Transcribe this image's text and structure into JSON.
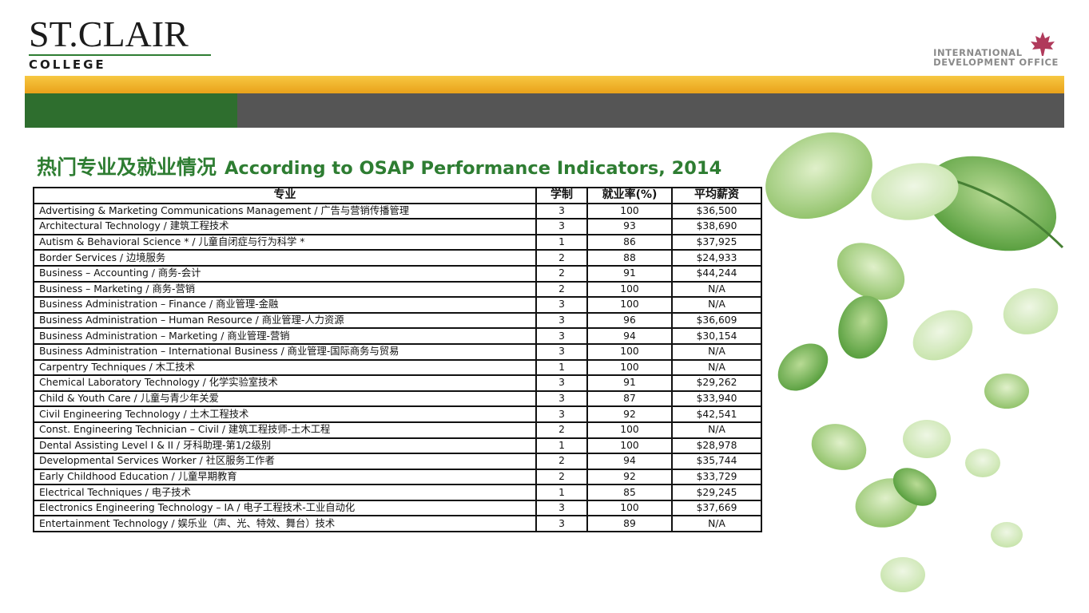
{
  "header": {
    "logo_main": "ST.CLAIR",
    "logo_sub": "COLLEGE",
    "office_line1": "INTERNATIONAL",
    "office_line2": "DEVELOPMENT OFFICE",
    "colors": {
      "yellow": "#f2b32a",
      "green": "#2e6e2e",
      "gray": "#555555",
      "title": "#2e7d32"
    }
  },
  "title": {
    "cn": "热门专业及就业情况",
    "en": "According to OSAP Performance Indicators, 2014"
  },
  "table": {
    "columns": [
      "专业",
      "学制",
      "就业率(%)",
      "平均薪资"
    ],
    "rows": [
      {
        "program": "Advertising & Marketing Communications Management / 广告与营销传播管理",
        "years": "3",
        "rate": "100",
        "salary": "$36,500"
      },
      {
        "program": "Architectural Technology / 建筑工程技术",
        "years": "3",
        "rate": "93",
        "salary": "$38,690"
      },
      {
        "program": "Autism & Behavioral Science * / 儿童自闭症与行为科学 *",
        "years": "1",
        "rate": "86",
        "salary": "$37,925"
      },
      {
        "program": "Border Services / 边境服务",
        "years": "2",
        "rate": "88",
        "salary": "$24,933"
      },
      {
        "program": "Business – Accounting / 商务-会计",
        "years": "2",
        "rate": "91",
        "salary": "$44,244"
      },
      {
        "program": "Business – Marketing / 商务-营销",
        "years": "2",
        "rate": "100",
        "salary": "N/A"
      },
      {
        "program": "Business Administration – Finance / 商业管理-金融",
        "years": "3",
        "rate": "100",
        "salary": "N/A"
      },
      {
        "program": "Business Administration – Human Resource / 商业管理-人力资源",
        "years": "3",
        "rate": "96",
        "salary": "$36,609"
      },
      {
        "program": "Business Administration – Marketing / 商业管理-营销",
        "years": "3",
        "rate": "94",
        "salary": "$30,154"
      },
      {
        "program": "Business Administration – International Business / 商业管理-国际商务与贸易",
        "years": "3",
        "rate": "100",
        "salary": "N/A"
      },
      {
        "program": "Carpentry Techniques / 木工技术",
        "years": "1",
        "rate": "100",
        "salary": "N/A"
      },
      {
        "program": "Chemical Laboratory Technology / 化学实验室技术",
        "years": "3",
        "rate": "91",
        "salary": "$29,262"
      },
      {
        "program": "Child & Youth Care / 儿童与青少年关爱",
        "years": "3",
        "rate": "87",
        "salary": "$33,940"
      },
      {
        "program": "Civil Engineering Technology / 土木工程技术",
        "years": "3",
        "rate": "92",
        "salary": "$42,541"
      },
      {
        "program": "Const. Engineering Technician – Civil / 建筑工程技师-土木工程",
        "years": "2",
        "rate": "100",
        "salary": "N/A"
      },
      {
        "program": "Dental Assisting Level I & II / 牙科助理-第1/2级别",
        "years": "1",
        "rate": "100",
        "salary": "$28,978"
      },
      {
        "program": "Developmental Services Worker / 社区服务工作者",
        "years": "2",
        "rate": "94",
        "salary": "$35,744"
      },
      {
        "program": "Early Childhood Education / 儿童早期教育",
        "years": "2",
        "rate": "92",
        "salary": "$33,729"
      },
      {
        "program": "Electrical Techniques / 电子技术",
        "years": "1",
        "rate": "85",
        "salary": "$29,245"
      },
      {
        "program": "Electronics Engineering Technology – IA / 电子工程技术-工业自动化",
        "years": "3",
        "rate": "100",
        "salary": "$37,669"
      },
      {
        "program": "Entertainment Technology / 娱乐业（声、光、特效、舞台）技术",
        "years": "3",
        "rate": "89",
        "salary": "N/A"
      }
    ]
  }
}
